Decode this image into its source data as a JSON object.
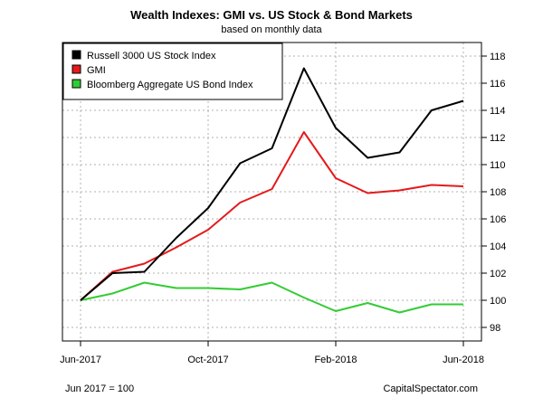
{
  "chart_data": {
    "type": "line",
    "title": "Wealth Indexes: GMI vs. US Stock & Bond Markets",
    "subtitle": "based on monthly data",
    "x": [
      "2017-06",
      "2017-07",
      "2017-08",
      "2017-09",
      "2017-10",
      "2017-11",
      "2017-12",
      "2018-01",
      "2018-02",
      "2018-03",
      "2018-04",
      "2018-05",
      "2018-06"
    ],
    "xticks": [
      {
        "x": "2017-06",
        "label": "Jun-2017"
      },
      {
        "x": "2017-10",
        "label": "Oct-2017"
      },
      {
        "x": "2018-02",
        "label": "Feb-2018"
      },
      {
        "x": "2018-06",
        "label": "Jun-2018"
      }
    ],
    "yticks": [
      98,
      100,
      102,
      104,
      106,
      108,
      110,
      112,
      114,
      116,
      118
    ],
    "ylim": [
      97.0,
      119.0
    ],
    "grid": true,
    "legend_position": "top-left",
    "series": [
      {
        "name": "Russell 3000 US Stock Index",
        "color": "#000000",
        "values": [
          100.0,
          102.0,
          102.1,
          104.6,
          106.8,
          110.1,
          111.2,
          117.1,
          112.7,
          110.5,
          110.9,
          114.0,
          114.7
        ]
      },
      {
        "name": "GMI",
        "color": "#e41a1c",
        "values": [
          100.0,
          102.1,
          102.7,
          103.9,
          105.2,
          107.2,
          108.2,
          112.4,
          109.0,
          107.9,
          108.1,
          108.5,
          108.4
        ]
      },
      {
        "name": "Bloomberg Aggregate US Bond Index",
        "color": "#33cc33",
        "values": [
          100.0,
          100.5,
          101.3,
          100.9,
          100.9,
          100.8,
          101.3,
          100.2,
          99.2,
          99.8,
          99.1,
          99.7,
          99.7
        ]
      }
    ],
    "note_left": "Jun 2017 = 100",
    "note_right": "CapitalSpectator.com"
  }
}
